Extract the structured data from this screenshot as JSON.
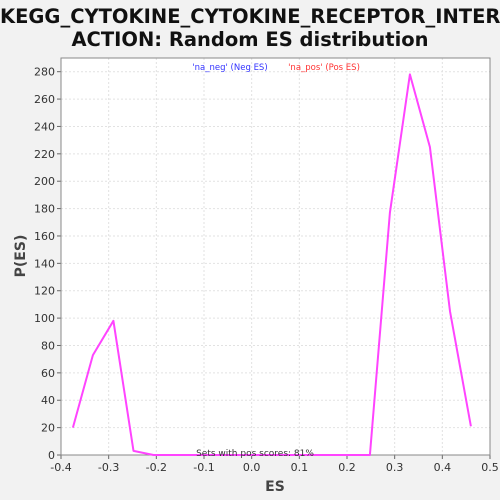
{
  "chart_data": {
    "type": "line",
    "title_line1": "KEGG_CYTOKINE_CYTOKINE_RECEPTOR_INTER",
    "title_line2": "ACTION: Random ES distribution",
    "xlabel": "ES",
    "ylabel": "P(ES)",
    "xlim": [
      -0.4,
      0.5
    ],
    "ylim": [
      0,
      290
    ],
    "xticks": [
      "-0.4",
      "-0.3",
      "-0.2",
      "-0.1",
      "0.0",
      "0.1",
      "0.2",
      "0.3",
      "0.4",
      "0.5"
    ],
    "yticks": [
      "0",
      "20",
      "40",
      "60",
      "80",
      "100",
      "120",
      "140",
      "160",
      "180",
      "200",
      "220",
      "240",
      "260",
      "280"
    ],
    "grid": true,
    "legend": [
      {
        "label": "'na_neg' (Neg ES)",
        "color": "#3333ff"
      },
      {
        "label": "'na_pos' (Pos ES)",
        "color": "#ff3333"
      }
    ],
    "annotation": "Sets with pos scores: 81%",
    "line_color": "#ff44ff",
    "series": [
      {
        "x": [
          -0.375,
          -0.333,
          -0.29,
          -0.248,
          -0.206,
          -0.164,
          -0.122,
          -0.08,
          -0.038,
          0.004,
          0.046,
          0.088,
          0.13,
          0.172,
          0.207,
          0.248,
          0.29,
          0.332,
          0.374,
          0.416,
          0.46
        ],
        "y": [
          20,
          73,
          98,
          3,
          0,
          0,
          0,
          0,
          0,
          0,
          0,
          0,
          0,
          0,
          0,
          0,
          177,
          278,
          225,
          105,
          21
        ]
      }
    ]
  }
}
